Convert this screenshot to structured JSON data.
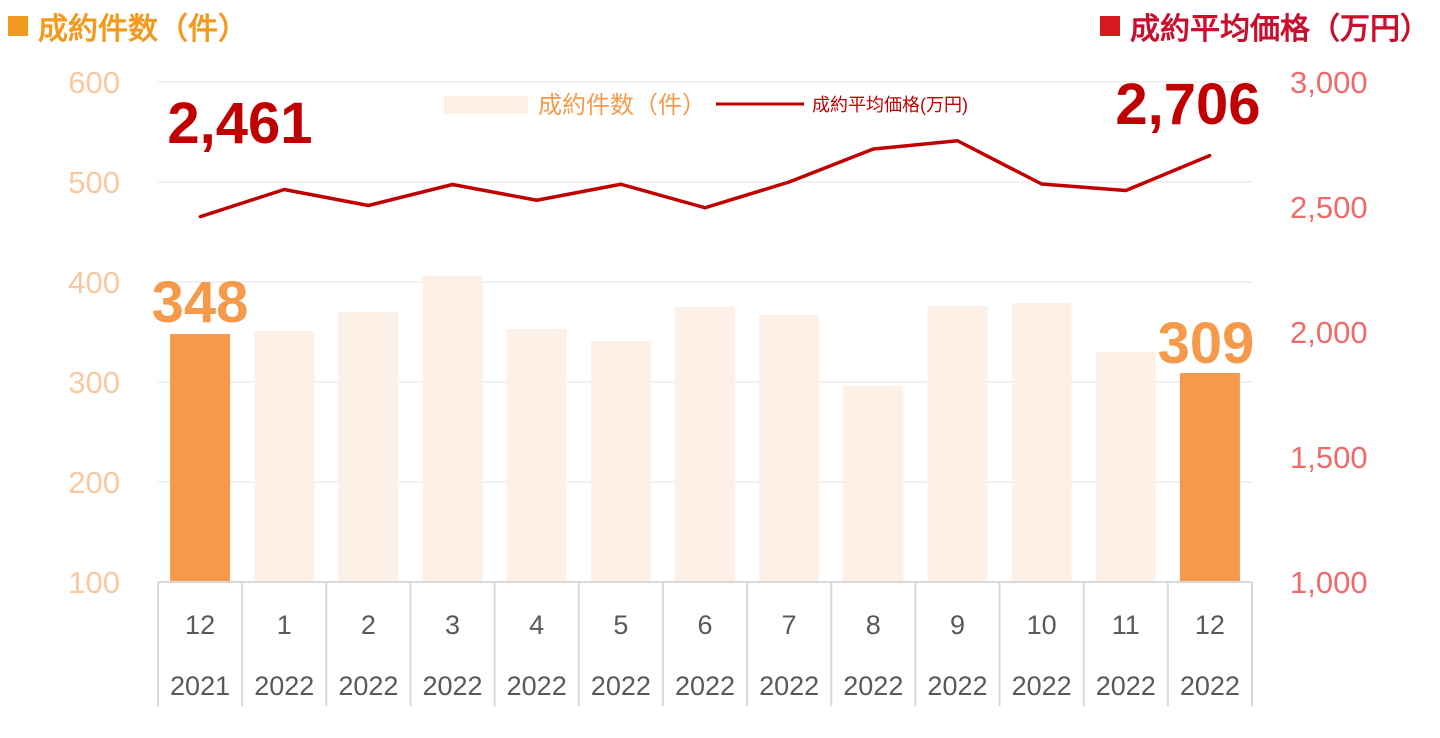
{
  "header": {
    "left_legend": "成約件数（件）",
    "right_legend": "成約平均価格（万円）"
  },
  "colors": {
    "bar_highlight": "#f59a4b",
    "bar_normal": "#fdf1e7",
    "line": "#c00000",
    "left_axis": "#f8c8a0",
    "right_axis": "#f06a6a",
    "left_legend": "#f29a1f",
    "right_legend": "#d71920"
  },
  "chart_data": {
    "type": "bar",
    "categories": [
      {
        "month": "12",
        "year": "2021"
      },
      {
        "month": "1",
        "year": "2022"
      },
      {
        "month": "2",
        "year": "2022"
      },
      {
        "month": "3",
        "year": "2022"
      },
      {
        "month": "4",
        "year": "2022"
      },
      {
        "month": "5",
        "year": "2022"
      },
      {
        "month": "6",
        "year": "2022"
      },
      {
        "month": "7",
        "year": "2022"
      },
      {
        "month": "8",
        "year": "2022"
      },
      {
        "month": "9",
        "year": "2022"
      },
      {
        "month": "10",
        "year": "2022"
      },
      {
        "month": "11",
        "year": "2022"
      },
      {
        "month": "12",
        "year": "2022"
      }
    ],
    "series": [
      {
        "name": "成約件数（件）",
        "type": "bar",
        "axis": "left",
        "values": [
          348,
          351,
          370,
          406,
          353,
          341,
          375,
          367,
          296,
          376,
          379,
          330,
          309
        ],
        "highlight": [
          0,
          12
        ]
      },
      {
        "name": "成約平均価格(万円)",
        "type": "line",
        "axis": "right",
        "values": [
          2461,
          2570,
          2506,
          2590,
          2527,
          2591,
          2497,
          2600,
          2732,
          2765,
          2592,
          2566,
          2706
        ]
      }
    ],
    "left_axis": {
      "min": 100,
      "max": 600,
      "ticks": [
        "100",
        "200",
        "300",
        "400",
        "500",
        "600"
      ]
    },
    "right_axis": {
      "min": 1000,
      "max": 3000,
      "ticks": [
        "1,000",
        "1,500",
        "2,000",
        "2,500",
        "3,000"
      ]
    },
    "gridlines": true,
    "legend_position": "top-center",
    "annotations": {
      "bar_first": "348",
      "bar_last": "309",
      "line_first": "2,461",
      "line_last": "2,706"
    }
  }
}
